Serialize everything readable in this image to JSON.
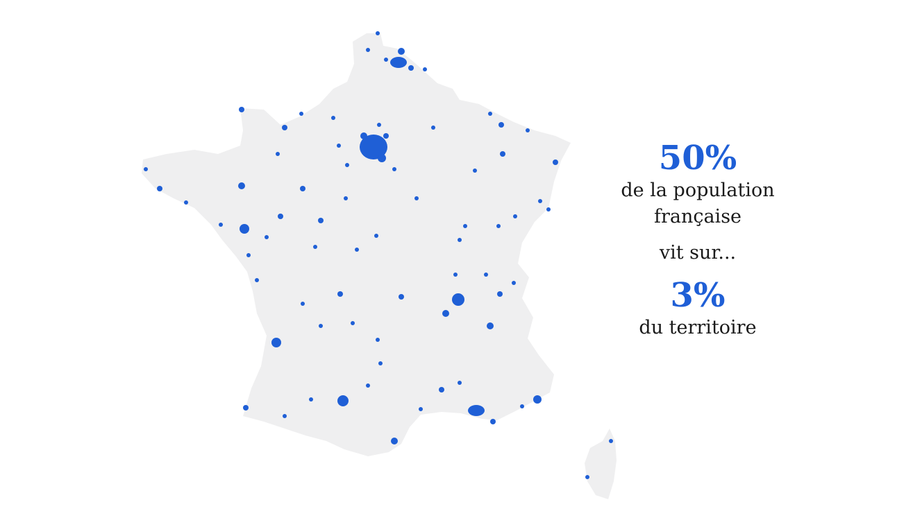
{
  "stats": {
    "population_percent": "50%",
    "population_line1": "de la population",
    "population_line2": "française",
    "connector": "vit sur...",
    "territory_percent": "3%",
    "territory_label": "du territoire"
  },
  "map": {
    "region": "France",
    "land_color": "#efeff0",
    "urban_color": "#1f5fd6",
    "background": "#ffffff"
  }
}
